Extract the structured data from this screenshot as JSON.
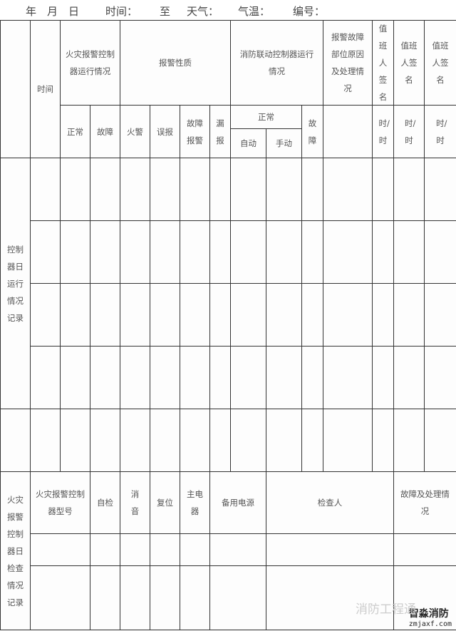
{
  "header": {
    "year": "年",
    "month": "月",
    "day": "日",
    "time": "时间：",
    "to": "至",
    "weather": "天气：",
    "temp": "气温：",
    "number": "编号："
  },
  "table": {
    "section1_label": "控制器日运行情况记录",
    "time": "时间",
    "fire_ctrl_status": "火灾报警控制器运行情况",
    "alarm_nature": "报警性质",
    "linkage_status": "消防联动控制器运行情况",
    "fault_reason": "报警故障部位原因及处理情况",
    "duty_sign_1": "值班人签名",
    "duty_sign_2": "值班人签名",
    "duty_sign_3": "值班人签名",
    "normal": "正常",
    "fault": "故障",
    "fire_alarm": "火警",
    "false_alarm": "误报",
    "fault_alarm": "故障报警",
    "missed_alarm": "漏报",
    "linkage_normal": "正常",
    "auto": "自动",
    "manual": "手动",
    "linkage_fault": "故障",
    "hour_range": "时/时",
    "section2_label": "火灾报警控制器日检查情况记录",
    "model": "火灾报警控制器型号",
    "self_check": "自检",
    "silence": "消音",
    "reset": "复位",
    "main_power": "主电器",
    "backup_power": "备用电源",
    "inspector": "检查人",
    "fault_handling": "故障及处理情况"
  },
  "watermark": {
    "brand": "智淼消防",
    "site": "zmjaxf.com",
    "wechat": "消防工程通"
  }
}
